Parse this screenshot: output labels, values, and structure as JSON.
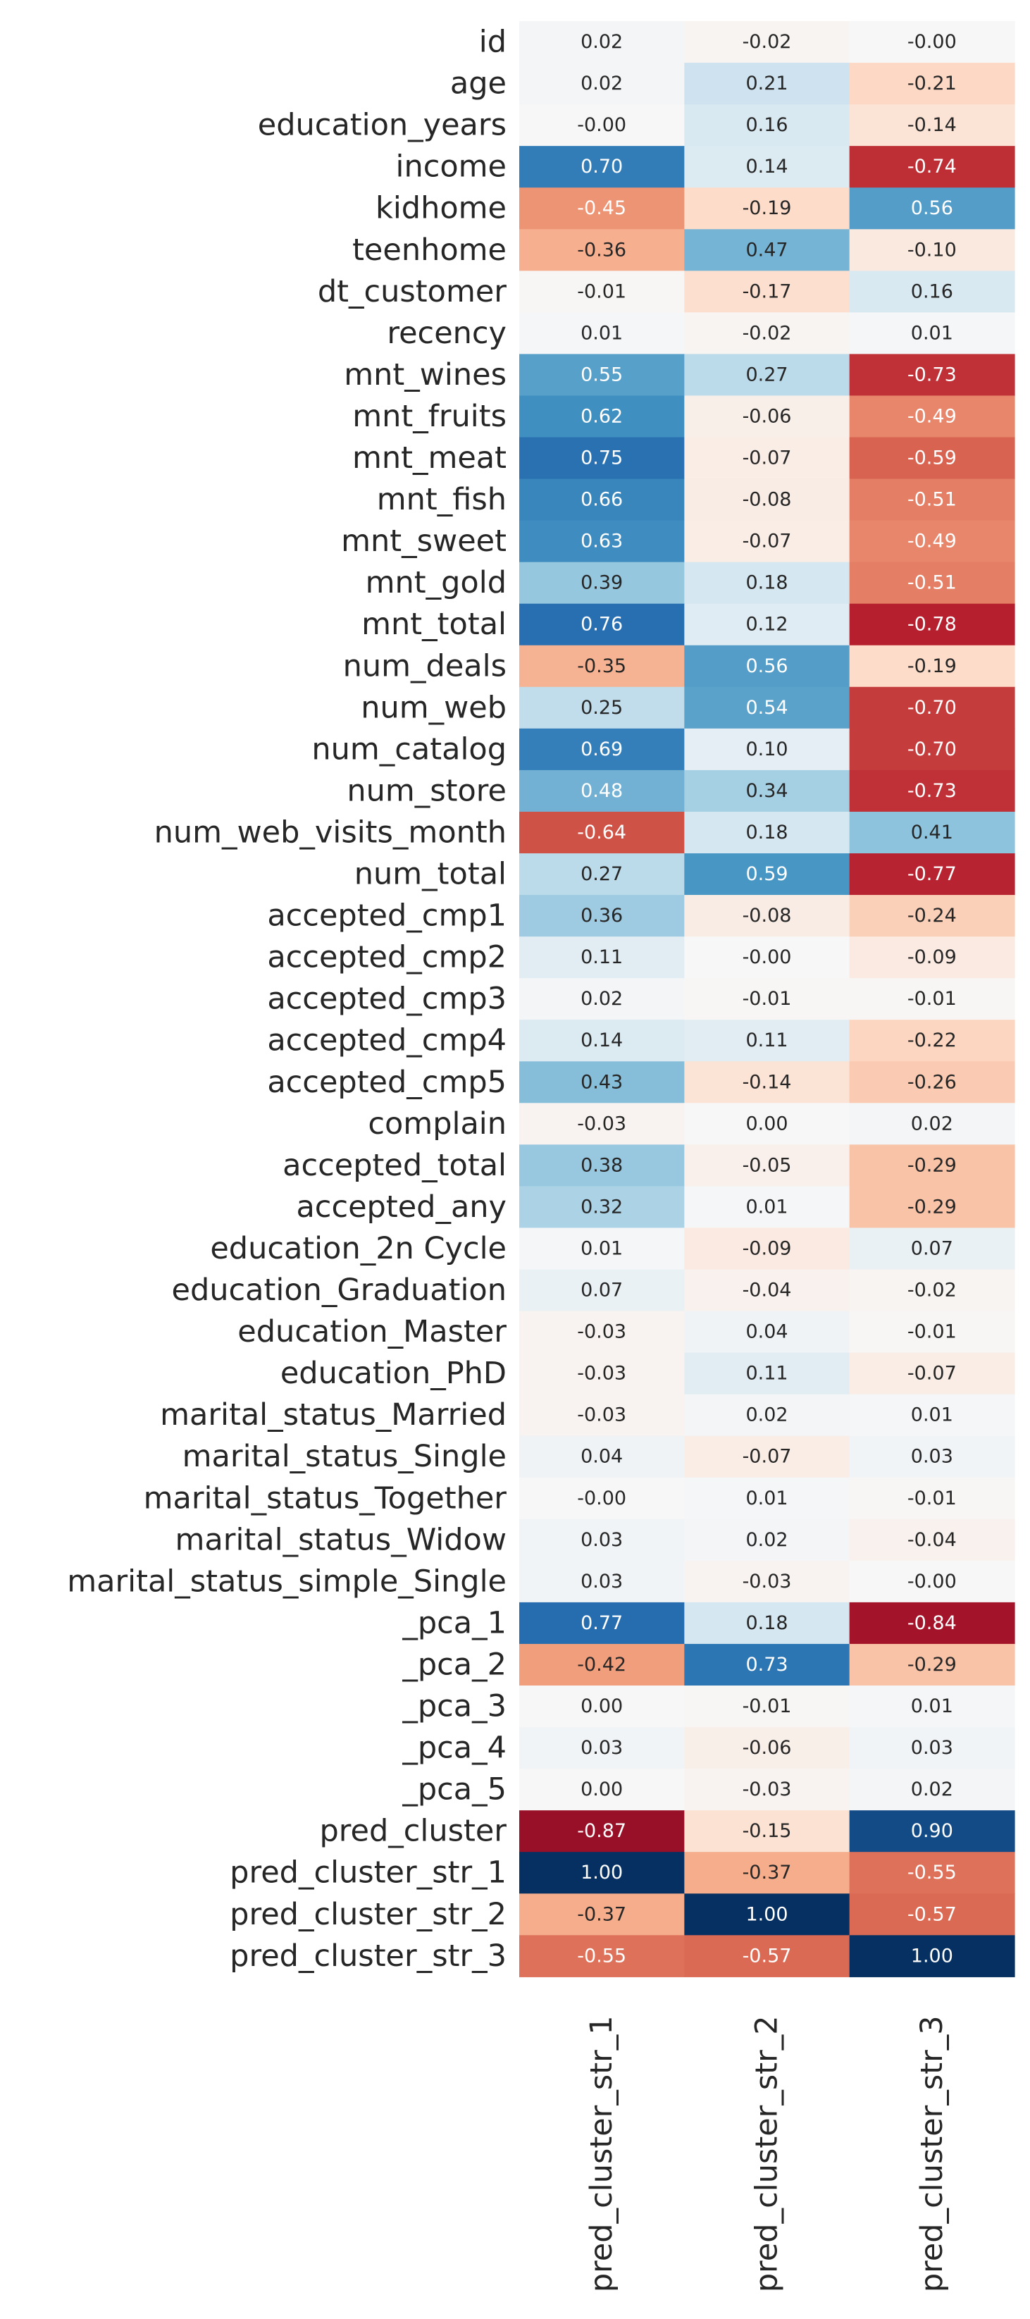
{
  "chart_data": {
    "type": "heatmap",
    "colormap": "RdBu",
    "vmin": -1,
    "vmax": 1,
    "colorbar": false,
    "columns": [
      "pred_cluster_str_1",
      "pred_cluster_str_2",
      "pred_cluster_str_3"
    ],
    "rows": [
      {
        "label": "id",
        "values": [
          0.02,
          -0.02,
          -0.0
        ],
        "text": [
          "0.02",
          "-0.02",
          "-0.00"
        ]
      },
      {
        "label": "age",
        "values": [
          0.02,
          0.21,
          -0.21
        ],
        "text": [
          "0.02",
          "0.21",
          "-0.21"
        ]
      },
      {
        "label": "education_years",
        "values": [
          -0.0,
          0.16,
          -0.14
        ],
        "text": [
          "-0.00",
          "0.16",
          "-0.14"
        ]
      },
      {
        "label": "income",
        "values": [
          0.7,
          0.14,
          -0.74
        ],
        "text": [
          "0.70",
          "0.14",
          "-0.74"
        ]
      },
      {
        "label": "kidhome",
        "values": [
          -0.45,
          -0.19,
          0.56
        ],
        "text": [
          "-0.45",
          "-0.19",
          "0.56"
        ]
      },
      {
        "label": "teenhome",
        "values": [
          -0.36,
          0.47,
          -0.1
        ],
        "text": [
          "-0.36",
          "0.47",
          "-0.10"
        ]
      },
      {
        "label": "dt_customer",
        "values": [
          -0.01,
          -0.17,
          0.16
        ],
        "text": [
          "-0.01",
          "-0.17",
          "0.16"
        ]
      },
      {
        "label": "recency",
        "values": [
          0.01,
          -0.02,
          0.01
        ],
        "text": [
          "0.01",
          "-0.02",
          "0.01"
        ]
      },
      {
        "label": "mnt_wines",
        "values": [
          0.55,
          0.27,
          -0.73
        ],
        "text": [
          "0.55",
          "0.27",
          "-0.73"
        ]
      },
      {
        "label": "mnt_fruits",
        "values": [
          0.62,
          -0.06,
          -0.49
        ],
        "text": [
          "0.62",
          "-0.06",
          "-0.49"
        ]
      },
      {
        "label": "mnt_meat",
        "values": [
          0.75,
          -0.07,
          -0.59
        ],
        "text": [
          "0.75",
          "-0.07",
          "-0.59"
        ]
      },
      {
        "label": "mnt_fish",
        "values": [
          0.66,
          -0.08,
          -0.51
        ],
        "text": [
          "0.66",
          "-0.08",
          "-0.51"
        ]
      },
      {
        "label": "mnt_sweet",
        "values": [
          0.63,
          -0.07,
          -0.49
        ],
        "text": [
          "0.63",
          "-0.07",
          "-0.49"
        ]
      },
      {
        "label": "mnt_gold",
        "values": [
          0.39,
          0.18,
          -0.51
        ],
        "text": [
          "0.39",
          "0.18",
          "-0.51"
        ]
      },
      {
        "label": "mnt_total",
        "values": [
          0.76,
          0.12,
          -0.78
        ],
        "text": [
          "0.76",
          "0.12",
          "-0.78"
        ]
      },
      {
        "label": "num_deals",
        "values": [
          -0.35,
          0.56,
          -0.19
        ],
        "text": [
          "-0.35",
          "0.56",
          "-0.19"
        ]
      },
      {
        "label": "num_web",
        "values": [
          0.25,
          0.54,
          -0.7
        ],
        "text": [
          "0.25",
          "0.54",
          "-0.70"
        ]
      },
      {
        "label": "num_catalog",
        "values": [
          0.69,
          0.1,
          -0.7
        ],
        "text": [
          "0.69",
          "0.10",
          "-0.70"
        ]
      },
      {
        "label": "num_store",
        "values": [
          0.48,
          0.34,
          -0.73
        ],
        "text": [
          "0.48",
          "0.34",
          "-0.73"
        ]
      },
      {
        "label": "num_web_visits_month",
        "values": [
          -0.64,
          0.18,
          0.41
        ],
        "text": [
          "-0.64",
          "0.18",
          "0.41"
        ]
      },
      {
        "label": "num_total",
        "values": [
          0.27,
          0.59,
          -0.77
        ],
        "text": [
          "0.27",
          "0.59",
          "-0.77"
        ]
      },
      {
        "label": "accepted_cmp1",
        "values": [
          0.36,
          -0.08,
          -0.24
        ],
        "text": [
          "0.36",
          "-0.08",
          "-0.24"
        ]
      },
      {
        "label": "accepted_cmp2",
        "values": [
          0.11,
          -0.0,
          -0.09
        ],
        "text": [
          "0.11",
          "-0.00",
          "-0.09"
        ]
      },
      {
        "label": "accepted_cmp3",
        "values": [
          0.02,
          -0.01,
          -0.01
        ],
        "text": [
          "0.02",
          "-0.01",
          "-0.01"
        ]
      },
      {
        "label": "accepted_cmp4",
        "values": [
          0.14,
          0.11,
          -0.22
        ],
        "text": [
          "0.14",
          "0.11",
          "-0.22"
        ]
      },
      {
        "label": "accepted_cmp5",
        "values": [
          0.43,
          -0.14,
          -0.26
        ],
        "text": [
          "0.43",
          "-0.14",
          "-0.26"
        ]
      },
      {
        "label": "complain",
        "values": [
          -0.03,
          0.0,
          0.02
        ],
        "text": [
          "-0.03",
          "0.00",
          "0.02"
        ]
      },
      {
        "label": "accepted_total",
        "values": [
          0.38,
          -0.05,
          -0.29
        ],
        "text": [
          "0.38",
          "-0.05",
          "-0.29"
        ]
      },
      {
        "label": "accepted_any",
        "values": [
          0.32,
          0.01,
          -0.29
        ],
        "text": [
          "0.32",
          "0.01",
          "-0.29"
        ]
      },
      {
        "label": "education_2n Cycle",
        "values": [
          0.01,
          -0.09,
          0.07
        ],
        "text": [
          "0.01",
          "-0.09",
          "0.07"
        ]
      },
      {
        "label": "education_Graduation",
        "values": [
          0.07,
          -0.04,
          -0.02
        ],
        "text": [
          "0.07",
          "-0.04",
          "-0.02"
        ]
      },
      {
        "label": "education_Master",
        "values": [
          -0.03,
          0.04,
          -0.01
        ],
        "text": [
          "-0.03",
          "0.04",
          "-0.01"
        ]
      },
      {
        "label": "education_PhD",
        "values": [
          -0.03,
          0.11,
          -0.07
        ],
        "text": [
          "-0.03",
          "0.11",
          "-0.07"
        ]
      },
      {
        "label": "marital_status_Married",
        "values": [
          -0.03,
          0.02,
          0.01
        ],
        "text": [
          "-0.03",
          "0.02",
          "0.01"
        ]
      },
      {
        "label": "marital_status_Single",
        "values": [
          0.04,
          -0.07,
          0.03
        ],
        "text": [
          "0.04",
          "-0.07",
          "0.03"
        ]
      },
      {
        "label": "marital_status_Together",
        "values": [
          -0.0,
          0.01,
          -0.01
        ],
        "text": [
          "-0.00",
          "0.01",
          "-0.01"
        ]
      },
      {
        "label": "marital_status_Widow",
        "values": [
          0.03,
          0.02,
          -0.04
        ],
        "text": [
          "0.03",
          "0.02",
          "-0.04"
        ]
      },
      {
        "label": "marital_status_simple_Single",
        "values": [
          0.03,
          -0.03,
          -0.0
        ],
        "text": [
          "0.03",
          "-0.03",
          "-0.00"
        ]
      },
      {
        "label": "_pca_1",
        "values": [
          0.77,
          0.18,
          -0.84
        ],
        "text": [
          "0.77",
          "0.18",
          "-0.84"
        ]
      },
      {
        "label": "_pca_2",
        "values": [
          -0.42,
          0.73,
          -0.29
        ],
        "text": [
          "-0.42",
          "0.73",
          "-0.29"
        ]
      },
      {
        "label": "_pca_3",
        "values": [
          0.0,
          -0.01,
          0.01
        ],
        "text": [
          "0.00",
          "-0.01",
          "0.01"
        ]
      },
      {
        "label": "_pca_4",
        "values": [
          0.03,
          -0.06,
          0.03
        ],
        "text": [
          "0.03",
          "-0.06",
          "0.03"
        ]
      },
      {
        "label": "_pca_5",
        "values": [
          0.0,
          -0.03,
          0.02
        ],
        "text": [
          "0.00",
          "-0.03",
          "0.02"
        ]
      },
      {
        "label": "pred_cluster",
        "values": [
          -0.87,
          -0.15,
          0.9
        ],
        "text": [
          "-0.87",
          "-0.15",
          "0.90"
        ]
      },
      {
        "label": "pred_cluster_str_1",
        "values": [
          1.0,
          -0.37,
          -0.55
        ],
        "text": [
          "1.00",
          "-0.37",
          "-0.55"
        ]
      },
      {
        "label": "pred_cluster_str_2",
        "values": [
          -0.37,
          1.0,
          -0.57
        ],
        "text": [
          "-0.37",
          "1.00",
          "-0.57"
        ]
      },
      {
        "label": "pred_cluster_str_3",
        "values": [
          -0.55,
          -0.57,
          1.0
        ],
        "text": [
          "-0.55",
          "-0.57",
          "1.00"
        ]
      }
    ]
  }
}
